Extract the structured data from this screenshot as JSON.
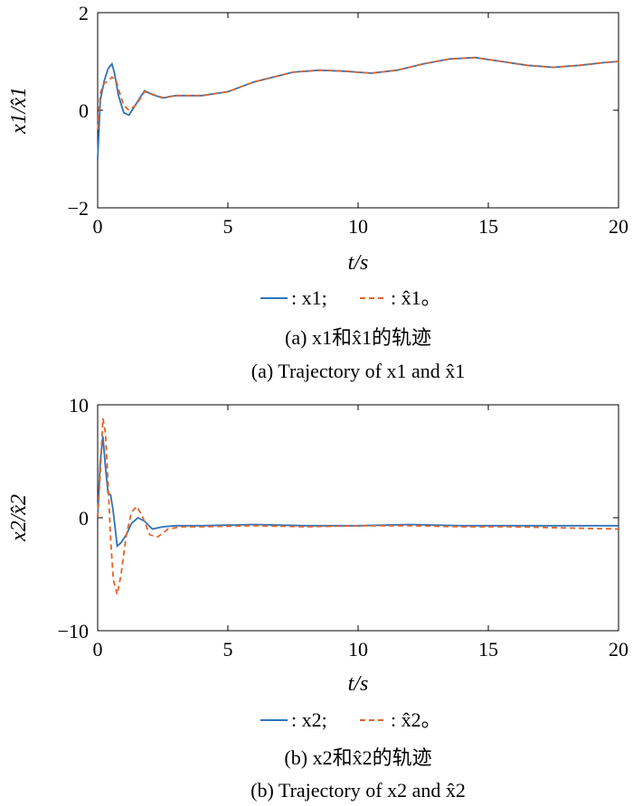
{
  "colors": {
    "series_actual": "#2f73b8",
    "series_estimate": "#e0642a"
  },
  "chart_data": [
    {
      "type": "line",
      "ylabel": "x1/x̂1",
      "xlabel": "t/s",
      "xlim": [
        0,
        20
      ],
      "ylim": [
        -2,
        2
      ],
      "xticks": [
        "0",
        "5",
        "10",
        "15",
        "20"
      ],
      "yticks": [
        "2",
        "0",
        "−2"
      ],
      "grid": false,
      "legend_position": "bottom",
      "legend": {
        "s1": ": x1;",
        "s2": ": x̂1。"
      },
      "caption_cn": "(a) x1和x̂1的轨迹",
      "caption_en": "(a) Trajectory of x1 and x̂1",
      "series": [
        {
          "name": ": x1;",
          "style": "solid",
          "x": [
            0,
            0.1,
            0.25,
            0.4,
            0.55,
            0.65,
            0.8,
            1.0,
            1.2,
            1.5,
            1.8,
            2.1,
            2.5,
            3.0,
            4.0,
            5.0,
            6.0,
            7.5,
            8.5,
            9.5,
            10.5,
            11.5,
            12.5,
            13.5,
            14.5,
            15.5,
            16.5,
            17.5,
            18.5,
            19.5,
            20
          ],
          "y": [
            -1.0,
            0.2,
            0.6,
            0.85,
            0.95,
            0.75,
            0.3,
            -0.05,
            -0.1,
            0.15,
            0.4,
            0.32,
            0.25,
            0.3,
            0.3,
            0.38,
            0.58,
            0.78,
            0.82,
            0.8,
            0.76,
            0.82,
            0.95,
            1.05,
            1.08,
            1.0,
            0.92,
            0.88,
            0.92,
            0.98,
            1.0
          ]
        },
        {
          "name": ": x̂1。",
          "style": "dashed",
          "x": [
            0,
            0.1,
            0.25,
            0.4,
            0.55,
            0.7,
            0.85,
            1.0,
            1.2,
            1.5,
            1.8,
            2.1,
            2.5,
            3.0,
            4.0,
            5.0,
            6.0,
            7.5,
            8.5,
            9.5,
            10.5,
            11.5,
            12.5,
            13.5,
            14.5,
            15.5,
            16.5,
            17.5,
            18.5,
            19.5,
            20
          ],
          "y": [
            -0.4,
            0.35,
            0.55,
            0.6,
            0.68,
            0.62,
            0.35,
            0.1,
            0.0,
            0.12,
            0.38,
            0.33,
            0.26,
            0.3,
            0.3,
            0.38,
            0.58,
            0.78,
            0.82,
            0.8,
            0.76,
            0.82,
            0.95,
            1.05,
            1.08,
            1.0,
            0.92,
            0.88,
            0.92,
            0.98,
            1.0
          ]
        }
      ]
    },
    {
      "type": "line",
      "ylabel": "x2/x̂2",
      "xlabel": "t/s",
      "xlim": [
        0,
        20
      ],
      "ylim": [
        -10,
        10
      ],
      "xticks": [
        "0",
        "5",
        "10",
        "15",
        "20"
      ],
      "yticks": [
        "10",
        "0",
        "−10"
      ],
      "grid": false,
      "legend_position": "bottom",
      "legend": {
        "s1": ": x2;",
        "s2": ": x̂2。"
      },
      "caption_cn": "(b) x2和x̂2的轨迹",
      "caption_en": "(b) Trajectory of x2 and x̂2",
      "series": [
        {
          "name": ": x2;",
          "style": "solid",
          "x": [
            0,
            0.1,
            0.2,
            0.3,
            0.4,
            0.5,
            0.6,
            0.75,
            0.9,
            1.1,
            1.3,
            1.55,
            1.8,
            2.1,
            2.5,
            3.0,
            4.0,
            6.0,
            8.0,
            10.0,
            12.0,
            14.0,
            16.0,
            18.0,
            20
          ],
          "y": [
            0,
            5.0,
            7.2,
            4.5,
            2.2,
            2.0,
            0.5,
            -2.5,
            -2.2,
            -1.5,
            -0.5,
            0.0,
            -0.3,
            -1.0,
            -0.8,
            -0.7,
            -0.7,
            -0.6,
            -0.7,
            -0.7,
            -0.6,
            -0.7,
            -0.7,
            -0.7,
            -0.7
          ]
        },
        {
          "name": ": x̂2。",
          "style": "dashed",
          "x": [
            0,
            0.1,
            0.2,
            0.3,
            0.4,
            0.5,
            0.6,
            0.75,
            0.9,
            1.1,
            1.3,
            1.5,
            1.7,
            2.0,
            2.3,
            2.7,
            3.2,
            4.0,
            6.0,
            8.0,
            10.0,
            12.0,
            14.0,
            16.0,
            18.0,
            20
          ],
          "y": [
            0,
            4.0,
            8.8,
            7.5,
            3.0,
            -2.0,
            -5.5,
            -6.8,
            -5.0,
            -1.5,
            0.5,
            1.0,
            0.2,
            -1.5,
            -1.7,
            -1.0,
            -0.8,
            -0.8,
            -0.7,
            -0.8,
            -0.7,
            -0.7,
            -0.8,
            -0.8,
            -0.9,
            -1.0
          ]
        }
      ]
    }
  ]
}
